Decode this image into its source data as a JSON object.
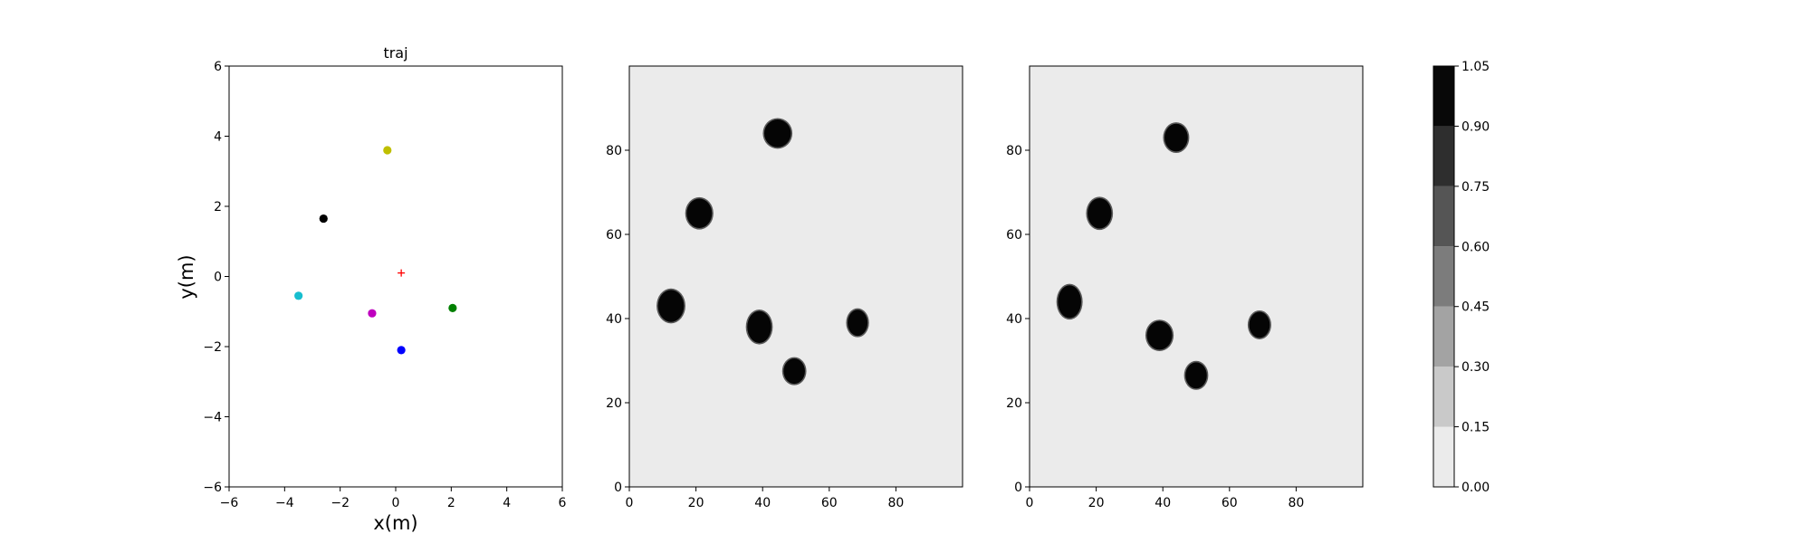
{
  "chart_data": [
    {
      "type": "scatter",
      "title": "traj",
      "xlabel": "x(m)",
      "ylabel": "y(m)",
      "xlim": [
        -6,
        6
      ],
      "ylim": [
        -6,
        6
      ],
      "xticks": [
        "−6",
        "−4",
        "−2",
        "0",
        "2",
        "4",
        "6"
      ],
      "yticks": [
        "−6",
        "−4",
        "−2",
        "0",
        "2",
        "4",
        "6"
      ],
      "grid": false,
      "points": [
        {
          "x": -0.3,
          "y": 3.6,
          "color": "#bfbf00",
          "marker": "circle"
        },
        {
          "x": -2.6,
          "y": 1.65,
          "color": "#000000",
          "marker": "circle"
        },
        {
          "x": -3.5,
          "y": -0.55,
          "color": "#17becf",
          "marker": "circle"
        },
        {
          "x": -0.85,
          "y": -1.05,
          "color": "#bf00bf",
          "marker": "circle"
        },
        {
          "x": 2.05,
          "y": -0.9,
          "color": "#008000",
          "marker": "circle"
        },
        {
          "x": 0.2,
          "y": -2.1,
          "color": "#0000ff",
          "marker": "circle"
        },
        {
          "x": 0.2,
          "y": 0.1,
          "color": "#ff0000",
          "marker": "plus"
        }
      ]
    },
    {
      "type": "heatmap",
      "xlim": [
        0,
        100
      ],
      "ylim": [
        0,
        100
      ],
      "xticks": [
        "0",
        "20",
        "40",
        "60",
        "80"
      ],
      "yticks": [
        "0",
        "20",
        "40",
        "60",
        "80"
      ],
      "background_value": 0.05,
      "blob_value": 1.0,
      "blobs": [
        {
          "x": 44.5,
          "y": 84.0,
          "rx": 4.0,
          "ry": 3.3
        },
        {
          "x": 21.0,
          "y": 65.0,
          "rx": 3.8,
          "ry": 3.5
        },
        {
          "x": 12.5,
          "y": 43.0,
          "rx": 3.9,
          "ry": 3.8
        },
        {
          "x": 39.0,
          "y": 38.0,
          "rx": 3.6,
          "ry": 3.8
        },
        {
          "x": 68.5,
          "y": 39.0,
          "rx": 3.0,
          "ry": 3.1
        },
        {
          "x": 49.5,
          "y": 27.5,
          "rx": 3.2,
          "ry": 3.0
        }
      ]
    },
    {
      "type": "heatmap",
      "xlim": [
        0,
        100
      ],
      "ylim": [
        0,
        100
      ],
      "xticks": [
        "0",
        "20",
        "40",
        "60",
        "80"
      ],
      "yticks": [
        "0",
        "20",
        "40",
        "60",
        "80"
      ],
      "background_value": 0.05,
      "blob_value": 1.0,
      "blobs": [
        {
          "x": 44.0,
          "y": 83.0,
          "rx": 3.5,
          "ry": 3.3
        },
        {
          "x": 21.0,
          "y": 65.0,
          "rx": 3.6,
          "ry": 3.6
        },
        {
          "x": 12.0,
          "y": 44.0,
          "rx": 3.5,
          "ry": 3.9
        },
        {
          "x": 39.0,
          "y": 36.0,
          "rx": 3.8,
          "ry": 3.4
        },
        {
          "x": 69.0,
          "y": 38.5,
          "rx": 3.1,
          "ry": 3.1
        },
        {
          "x": 50.0,
          "y": 26.5,
          "rx": 3.2,
          "ry": 3.1
        }
      ]
    }
  ],
  "colorbar": {
    "levels": [
      "0.00",
      "0.15",
      "0.30",
      "0.45",
      "0.60",
      "0.75",
      "0.90",
      "1.05"
    ],
    "colors": [
      "#ebebeb",
      "#c9c9c9",
      "#a3a3a3",
      "#7c7c7c",
      "#555555",
      "#2e2e2e",
      "#080808"
    ]
  }
}
